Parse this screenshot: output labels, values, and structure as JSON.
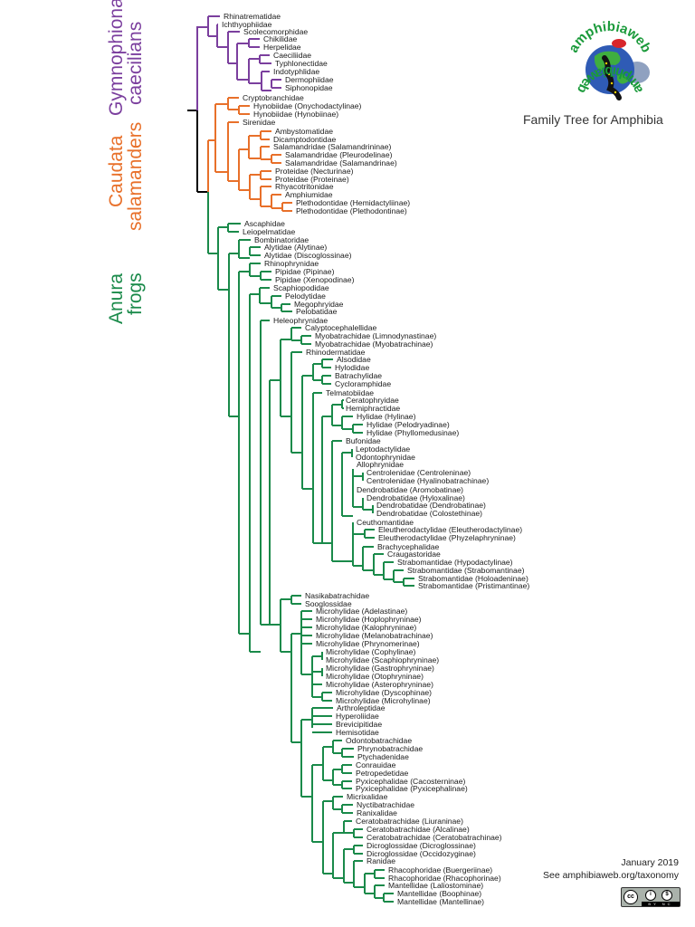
{
  "title": "Family Tree for Amphibia",
  "logo": {
    "text_top": "amphibiaweb",
    "text_bottom": "amphibiaweb",
    "icon": "globe-salamander-frog-logo"
  },
  "footer": {
    "date": "January 2019",
    "link_text": "See amphibiaweb.org/taxonomy",
    "license": "CC BY NC",
    "license_icon": "creative-commons-by-nc-icon"
  },
  "colors": {
    "gymnophiona": "#7b3f9e",
    "caudata": "#e8702a",
    "anura": "#1a8a4a",
    "root": "#000000"
  },
  "orders": [
    {
      "name": "Gymnophiona",
      "common": "caecilians",
      "color": "#7b3f9e"
    },
    {
      "name": "Caudata",
      "common": "salamanders",
      "color": "#e8702a"
    },
    {
      "name": "Anura",
      "common": "frogs",
      "color": "#1a8a4a"
    }
  ],
  "taxa": {
    "gymnophiona": [
      "Rhinatrematidae",
      "Ichthyophiidae",
      "Scolecomorphidae",
      "Chikilidae",
      "Herpelidae",
      "Caeciliidae",
      "Typhlonectidae",
      "Indotyphlidae",
      "Dermophiidae",
      "Siphonopidae"
    ],
    "caudata": [
      "Cryptobranchidae",
      "Hynobiidae (Onychodactylinae)",
      "Hynobiidae (Hynobiinae)",
      "Sirenidae",
      "Ambystomatidae",
      "Dicamptodontidae",
      "Salamandridae (Salamandrininae)",
      "Salamandridae (Pleurodelinae)",
      "Salamandridae (Salamandrinae)",
      "Proteidae (Necturinae)",
      "Proteidae (Proteinae)",
      "Rhyacotritonidae",
      "Amphiumidae",
      "Plethodontidae (Hemidactyliinae)",
      "Plethodontidae (Plethodontinae)"
    ],
    "anura": [
      "Ascaphidae",
      "Leiopelmatidae",
      "Bombinatoridae",
      "Alytidae (Alytinae)",
      "Alytidae (Discoglossinae)",
      "Rhinophrynidae",
      "Pipidae (Pipinae)",
      "Pipidae (Xenopodinae)",
      "Scaphiopodidae",
      "Pelodytidae",
      "Megophryidae",
      "Pelobatidae",
      "Heleophrynidae",
      "Calyptocephalellidae",
      "Myobatrachidae (Limnodynastinae)",
      "Myobatrachidae (Myobatrachinae)",
      "Rhinodermatidae",
      "Alsodidae",
      "Hylodidae",
      "Batrachylidae",
      "Cycloramphidae",
      "Telmatobiidae",
      "Ceratophryidae",
      "Hemiphractidae",
      "Hylidae (Hylinae)",
      "Hylidae (Pelodryadinae)",
      "Hylidae (Phyllomedusinae)",
      "Bufonidae",
      "Leptodactylidae",
      "Odontophrynidae",
      "Allophrynidae",
      "Centrolenidae (Centroleninae)",
      "Centrolenidae (Hyalinobatrachinae)",
      "Dendrobatidae (Aromobatinae)",
      "Dendrobatidae (Hyloxalinae)",
      "Dendrobatidae (Dendrobatinae)",
      "Dendrobatidae (Colostethinae)",
      "Ceuthomantidae",
      "Eleutherodactylidae (Eleutherodactylinae)",
      "Eleutherodactylidae (Phyzelaphryninae)",
      "Brachycephalidae",
      "Craugastoridae",
      "Strabomantidae (Hypodactylinae)",
      "Strabomantidae (Strabomantinae)",
      "Strabomantidae (Holoadeninae)",
      "Strabomantidae (Pristimantinae)",
      "Nasikabatrachidae",
      "Sooglossidae",
      "Microhylidae (Adelastinae)",
      "Microhylidae (Hoplophryninae)",
      "Microhylidae (Kalophryninae)",
      "Microhylidae (Melanobatrachinae)",
      "Microhylidae (Phrynomerinae)",
      "Microhylidae (Cophylinae)",
      "Microhylidae (Scaphiophryninae)",
      "Microhylidae (Gastrophryninae)",
      "Microhylidae (Otophryninae)",
      "Microhylidae (Asterophryninae)",
      "Microhylidae (Dyscophinae)",
      "Microhylidae (Microhylinae)",
      "Arthroleptidae",
      "Hyperoliidae",
      "Brevicipitidae",
      "Hemisotidae",
      "Odontobatrachidae",
      "Phrynobatrachidae",
      "Ptychadenidae",
      "Conrauidae",
      "Petropedetidae",
      "Pyxicephalidae (Cacosterninae)",
      "Pyxicephalidae (Pyxicephalinae)",
      "Micrixalidae",
      "Nyctibatrachidae",
      "Ranixalidae",
      "Ceratobatrachidae (Liuraninae)",
      "Ceratobatrachidae (Alcalinae)",
      "Ceratobatrachidae (Ceratobatrachinae)",
      "Dicroglossidae (Dicroglossinae)",
      "Dicroglossidae (Occidozyginae)",
      "Ranidae",
      "Rhacophoridae (Buergeriinae)",
      "Rhacophoridae (Rhacophorinae)",
      "Mantellidae (Laliostominae)",
      "Mantellidae (Boophinae)",
      "Mantellidae (Mantellinae)"
    ]
  },
  "tips": [
    [
      "Rhinatrematidae",
      245,
      18,
      "g"
    ],
    [
      "Ichthyophiidae",
      243,
      27,
      "g"
    ],
    [
      "Scolecomorphidae",
      267,
      35,
      "g"
    ],
    [
      "Chikilidae",
      289,
      43,
      "g"
    ],
    [
      "Herpelidae",
      289,
      52,
      "g"
    ],
    [
      "Caeciliidae",
      300,
      61,
      "g"
    ],
    [
      "Typhlonectidae",
      302,
      70,
      "g"
    ],
    [
      "Indotyphlidae",
      300,
      79,
      "g"
    ],
    [
      "Dermophiidae",
      313,
      88,
      "g"
    ],
    [
      "Siphonopidae",
      313,
      97,
      "g"
    ],
    [
      "Cryptobranchidae",
      266,
      108,
      "c"
    ],
    [
      "Hynobiidae (Onychodactylinae)",
      278,
      117,
      "c"
    ],
    [
      "Hynobiidae (Hynobiinae)",
      278,
      126,
      "c"
    ],
    [
      "Sirenidae",
      266,
      135,
      "c"
    ],
    [
      "Ambystomatidae",
      302,
      145,
      "c"
    ],
    [
      "Dicamptodontidae",
      300,
      154,
      "c"
    ],
    [
      "Salamandridae (Salamandrininae)",
      300,
      162,
      "c"
    ],
    [
      "Salamandridae (Pleurodelinae)",
      313,
      171,
      "c"
    ],
    [
      "Salamandridae (Salamandrinae)",
      313,
      180,
      "c"
    ],
    [
      "Proteidae (Necturinae)",
      302,
      189,
      "c"
    ],
    [
      "Proteidae (Proteinae)",
      302,
      198,
      "c"
    ],
    [
      "Rhyacotritonidae",
      302,
      206,
      "c"
    ],
    [
      "Amphiumidae",
      313,
      215,
      "c"
    ],
    [
      "Plethodontidae (Hemidactyliinae)",
      325,
      224,
      "c"
    ],
    [
      "Plethodontidae (Plethodontinae)",
      325,
      233,
      "c"
    ],
    [
      "Ascaphidae",
      268,
      247,
      "a"
    ],
    [
      "Leiopelmatidae",
      266,
      256,
      "a"
    ],
    [
      "Bombinatoridae",
      279,
      265,
      "a"
    ],
    [
      "Alytidae (Alytinae)",
      290,
      273,
      "a"
    ],
    [
      "Alytidae (Discoglossinae)",
      290,
      282,
      "a"
    ],
    [
      "Rhinophrynidae",
      290,
      291,
      "a"
    ],
    [
      "Pipidae (Pipinae)",
      302,
      300,
      "a"
    ],
    [
      "Pipidae (Xenopodinae)",
      302,
      309,
      "a"
    ],
    [
      "Scaphiopodidae",
      300,
      318,
      "a"
    ],
    [
      "Pelodytidae",
      313,
      327,
      "a"
    ],
    [
      "Megophryidae",
      323,
      336,
      "a"
    ],
    [
      "Pelobatidae",
      325,
      344,
      "a"
    ],
    [
      "Heleophrynidae",
      300,
      354,
      "a"
    ],
    [
      "Calyptocephalellidae",
      335,
      362,
      "a"
    ],
    [
      "Myobatrachidae (Limnodynastinae)",
      346,
      371,
      "a"
    ],
    [
      "Myobatrachidae (Myobatrachinae)",
      346,
      380,
      "a"
    ],
    [
      "Rhinodermatidae",
      336,
      389,
      "a"
    ],
    [
      "Alsodidae",
      370,
      397,
      "a"
    ],
    [
      "Hylodidae",
      368,
      406,
      "a"
    ],
    [
      "Batrachylidae",
      368,
      415,
      "a"
    ],
    [
      "Cycloramphidae",
      368,
      424,
      "a"
    ],
    [
      "Telmatobiidae",
      358,
      434,
      "a"
    ],
    [
      "Ceratophryidae",
      380,
      442,
      "a"
    ],
    [
      "Hemiphractidae",
      380,
      451,
      "a"
    ],
    [
      "Hylidae (Hylinae)",
      392,
      460,
      "a"
    ],
    [
      "Hylidae (Pelodryadinae)",
      403,
      469,
      "a"
    ],
    [
      "Hylidae (Phyllomedusinae)",
      403,
      478,
      "a"
    ],
    [
      "Bufonidae",
      380,
      487,
      "a"
    ],
    [
      "Leptodactylidae",
      391,
      496,
      "a"
    ],
    [
      "Odontophrynidae",
      391,
      505,
      "a"
    ],
    [
      "Allophrynidae",
      392,
      513,
      "a"
    ],
    [
      "Centrolenidae (Centroleninae)",
      403,
      522,
      "a"
    ],
    [
      "Centrolenidae (Hyalinobatrachinae)",
      403,
      531,
      "a"
    ],
    [
      "Dendrobatidae (Aromobatinae)",
      392,
      541,
      "a"
    ],
    [
      "Dendrobatidae (Hyloxalinae)",
      403,
      550,
      "a"
    ],
    [
      "Dendrobatidae (Dendrobatinae)",
      414,
      558,
      "a"
    ],
    [
      "Dendrobatidae (Colostethinae)",
      414,
      567,
      "a"
    ],
    [
      "Ceuthomantidae",
      392,
      577,
      "a"
    ],
    [
      "Eleutherodactylidae (Eleutherodactylinae)",
      416,
      585,
      "a"
    ],
    [
      "Eleutherodactylidae (Phyzelaphryninae)",
      416,
      594,
      "a"
    ],
    [
      "Brachycephalidae",
      415,
      604,
      "a"
    ],
    [
      "Craugastoridae",
      426,
      612,
      "a"
    ],
    [
      "Strabomantidae (Hypodactylinae)",
      437,
      621,
      "a"
    ],
    [
      "Strabomantidae (Strabomantinae)",
      448,
      630,
      "a"
    ],
    [
      "Strabomantidae (Holoadeninae)",
      460,
      639,
      "a"
    ],
    [
      "Strabomantidae (Pristimantinae)",
      460,
      647,
      "a"
    ],
    [
      "Nasikabatrachidae",
      335,
      658,
      "a"
    ],
    [
      "Sooglossidae",
      335,
      667,
      "a"
    ],
    [
      "Microhylidae (Adelastinae)",
      347,
      675,
      "a"
    ],
    [
      "Microhylidae (Hoplophryninae)",
      347,
      684,
      "a"
    ],
    [
      "Microhylidae (Kalophryninae)",
      347,
      693,
      "a"
    ],
    [
      "Microhylidae (Melanobatrachinae)",
      347,
      702,
      "a"
    ],
    [
      "Microhylidae (Phrynomerinae)",
      347,
      711,
      "a"
    ],
    [
      "Microhylidae (Cophylinae)",
      358,
      720,
      "a"
    ],
    [
      "Microhylidae (Scaphiophryninae)",
      358,
      729,
      "a"
    ],
    [
      "Microhylidae (Gastrophryninae)",
      358,
      738,
      "a"
    ],
    [
      "Microhylidae (Otophryninae)",
      358,
      747,
      "a"
    ],
    [
      "Microhylidae (Asterophryninae)",
      358,
      756,
      "a"
    ],
    [
      "Microhylidae (Dyscophinae)",
      369,
      765,
      "a"
    ],
    [
      "Microhylidae (Microhylinae)",
      369,
      774,
      "a"
    ],
    [
      "Arthroleptidae",
      370,
      782,
      "a"
    ],
    [
      "Hyperoliidae",
      369,
      791,
      "a"
    ],
    [
      "Brevicipitidae",
      369,
      800,
      "a"
    ],
    [
      "Hemisotidae",
      369,
      809,
      "a"
    ],
    [
      "Odontobatrachidae",
      380,
      818,
      "a"
    ],
    [
      "Phrynobatrachidae",
      393,
      827,
      "a"
    ],
    [
      "Ptychadenidae",
      393,
      836,
      "a"
    ],
    [
      "Conrauidae",
      391,
      845,
      "a"
    ],
    [
      "Petropedetidae",
      391,
      854,
      "a"
    ],
    [
      "Pyxicephalidae (Cacosterninae)",
      391,
      863,
      "a"
    ],
    [
      "Pyxicephalidae (Pyxicephalinae)",
      391,
      871,
      "a"
    ],
    [
      "Micrixalidae",
      381,
      880,
      "a"
    ],
    [
      "Nyctibatrachidae",
      392,
      889,
      "a"
    ],
    [
      "Ranixalidae",
      392,
      898,
      "a"
    ],
    [
      "Ceratobatrachidae (Liuraninae)",
      391,
      907,
      "a"
    ],
    [
      "Ceratobatrachidae (Alcalinae)",
      403,
      916,
      "a"
    ],
    [
      "Ceratobatrachidae (Ceratobatrachinae)",
      403,
      925,
      "a"
    ],
    [
      "Dicroglossidae (Dicroglossinae)",
      403,
      934,
      "a"
    ],
    [
      "Dicroglossidae (Occidozyginae)",
      403,
      943,
      "a"
    ],
    [
      "Ranidae",
      403,
      951,
      "a"
    ],
    [
      "Rhacophoridae (Buergeriinae)",
      427,
      961,
      "a"
    ],
    [
      "Rhacophoridae (Rhacophorinae)",
      427,
      970,
      "a"
    ],
    [
      "Mantellidae (Laliostominae)",
      427,
      978,
      "a"
    ],
    [
      "Mantellidae (Boophinae)",
      437,
      987,
      "a"
    ],
    [
      "Mantellidae (Mantellinae)",
      437,
      996,
      "a"
    ]
  ]
}
